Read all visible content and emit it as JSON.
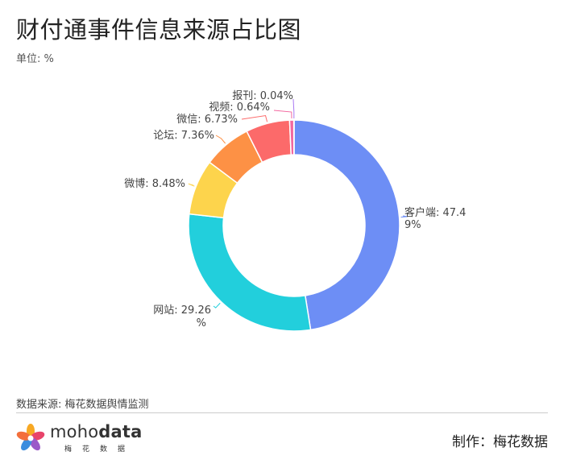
{
  "title": "财付通事件信息来源占比图",
  "unit": "单位: %",
  "source": "数据来源: 梅花数据舆情监测",
  "credit": "制作：梅花数据",
  "brand": {
    "name_regular": "moho",
    "name_bold": "data",
    "sub": "梅花数据"
  },
  "chart_data": {
    "type": "pie",
    "variant": "donut",
    "title": "财付通事件信息来源占比图",
    "unit": "%",
    "series": [
      {
        "values": [
          {
            "name": "客户端",
            "value": 47.49,
            "color": "#6d8ef5",
            "label_lines": [
              "客户端: 47.4",
              "9%"
            ]
          },
          {
            "name": "网站",
            "value": 29.26,
            "color": "#22cfdc",
            "label_lines": [
              "网站: 29.26",
              "%"
            ]
          },
          {
            "name": "微博",
            "value": 8.48,
            "color": "#fdd44c",
            "label_lines": [
              "微博: 8.48%"
            ]
          },
          {
            "name": "论坛",
            "value": 7.36,
            "color": "#fd9145",
            "label_lines": [
              "论坛: 7.36%"
            ]
          },
          {
            "name": "微信",
            "value": 6.73,
            "color": "#fc6a6a",
            "label_lines": [
              "微信: 6.73%"
            ]
          },
          {
            "name": "视频",
            "value": 0.64,
            "color": "#f3679f",
            "label_lines": [
              "视频: 0.64%"
            ]
          },
          {
            "name": "报刊",
            "value": 0.04,
            "color": "#a979f2",
            "label_lines": [
              "报刊: 0.04%"
            ]
          }
        ]
      }
    ],
    "start_angle": "12 o'clock",
    "direction": "clockwise",
    "legend": "none"
  }
}
